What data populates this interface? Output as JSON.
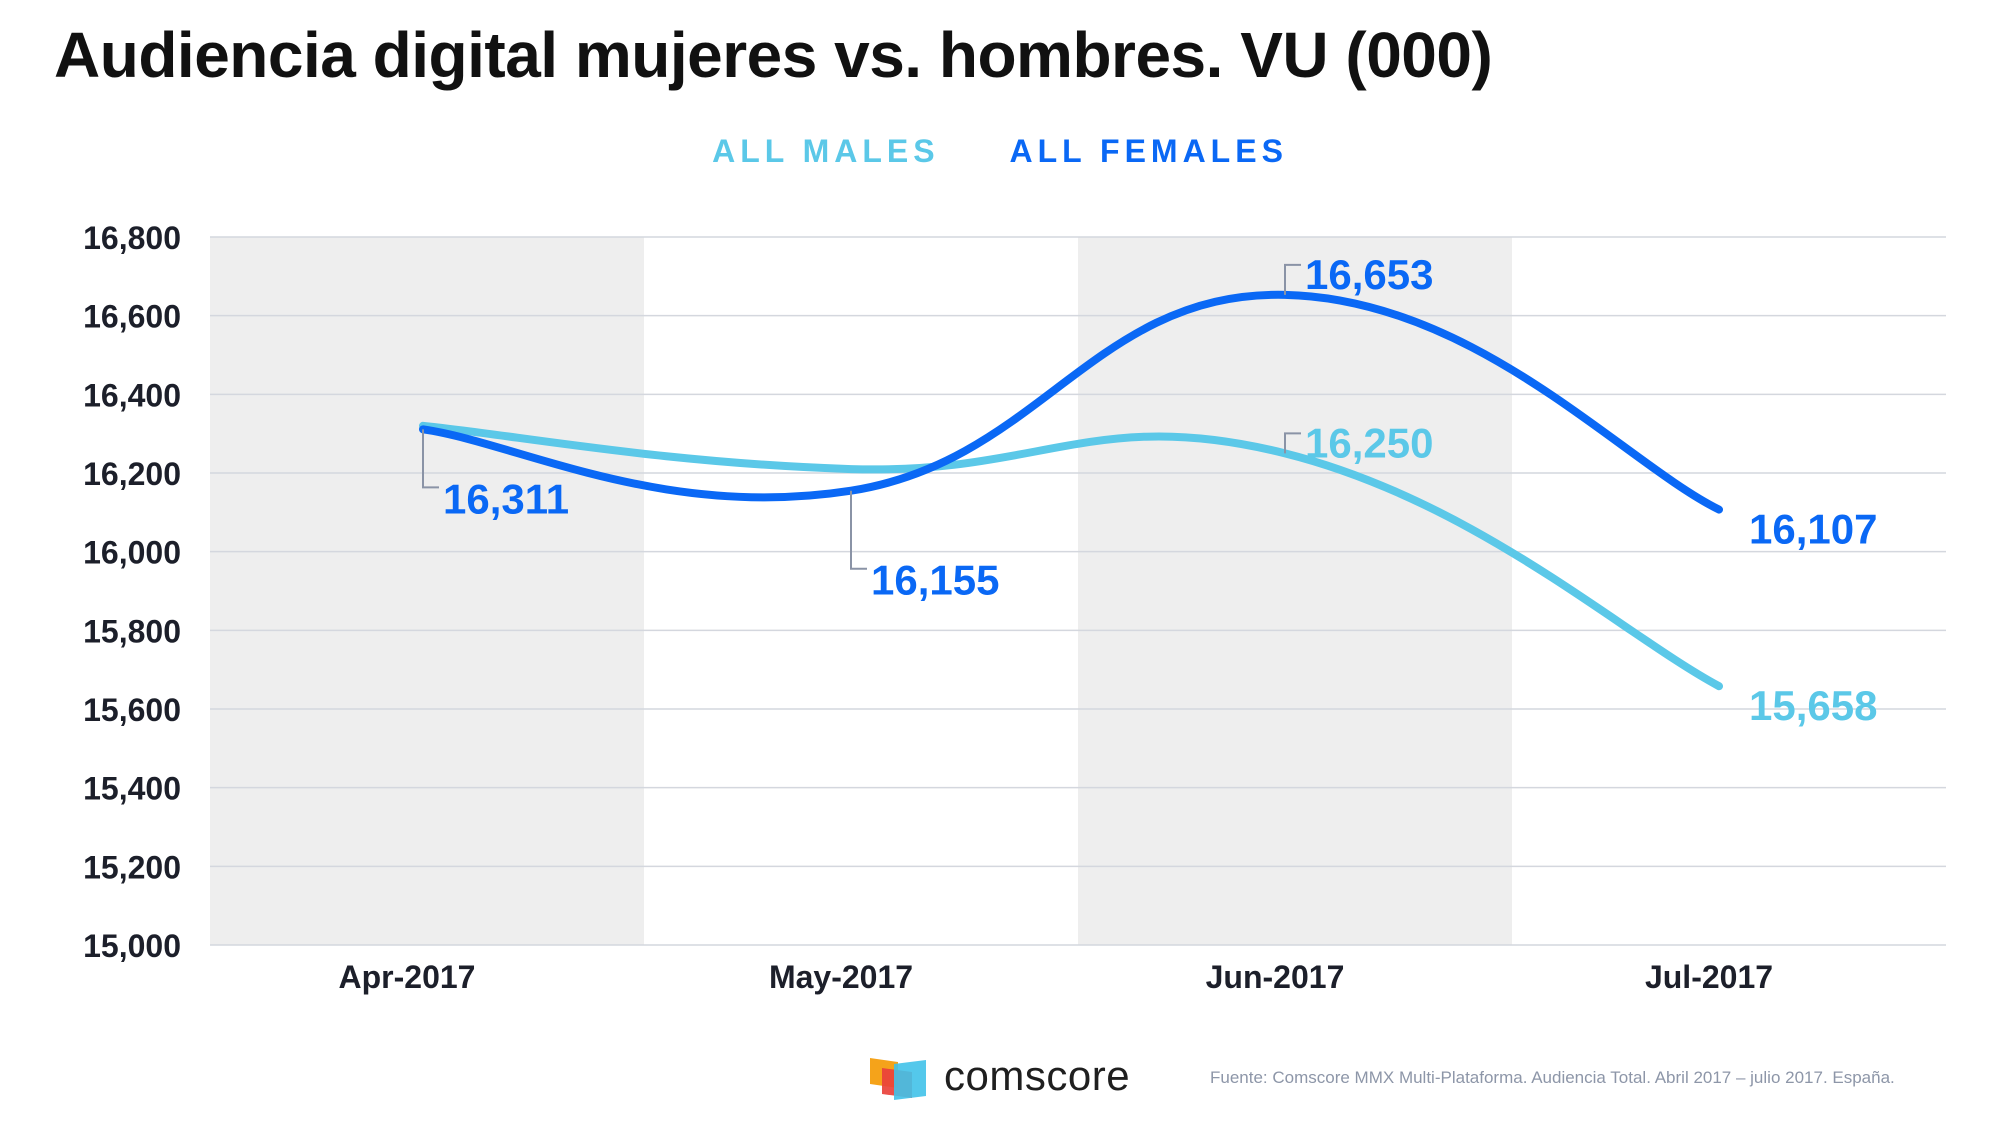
{
  "title": "Audiencia digital mujeres vs. hombres. VU (000)",
  "colors": {
    "males": "#5bc8e8",
    "females": "#0a68f5",
    "band": "#eeeeee",
    "grid": "#d4d7de",
    "axis_text": "#1c1f2a"
  },
  "chart_data": {
    "type": "line",
    "title": "Audiencia digital mujeres vs. hombres. VU (000)",
    "categories": [
      "Apr-2017",
      "May-2017",
      "Jun-2017",
      "Jul-2017"
    ],
    "series": [
      {
        "name": "ALL MALES",
        "values": [
          16320,
          16210,
          16250,
          15658
        ],
        "color": "#5bc8e8"
      },
      {
        "name": "ALL FEMALES",
        "values": [
          16311,
          16155,
          16653,
          16107
        ],
        "color": "#0a68f5"
      }
    ],
    "data_labels": [
      {
        "series": "ALL FEMALES",
        "category": "Apr-2017",
        "text": "16,311"
      },
      {
        "series": "ALL FEMALES",
        "category": "May-2017",
        "text": "16,155"
      },
      {
        "series": "ALL FEMALES",
        "category": "Jun-2017",
        "text": "16,653"
      },
      {
        "series": "ALL MALES",
        "category": "Jun-2017",
        "text": "16,250"
      },
      {
        "series": "ALL FEMALES",
        "category": "Jul-2017",
        "text": "16,107"
      },
      {
        "series": "ALL MALES",
        "category": "Jul-2017",
        "text": "15,658"
      }
    ],
    "yticks": [
      "15,000",
      "15,200",
      "15,400",
      "15,600",
      "15,800",
      "16,000",
      "16,200",
      "16,400",
      "16,600",
      "16,800"
    ],
    "ylim": [
      15000,
      16800
    ],
    "grid": true,
    "legend_position": "top-center",
    "xlabel": "",
    "ylabel": ""
  },
  "footer": {
    "brand": "comscore",
    "source": "Fuente: Comscore MMX Multi-Plataforma. Audiencia Total. Abril 2017 – julio 2017. España."
  }
}
